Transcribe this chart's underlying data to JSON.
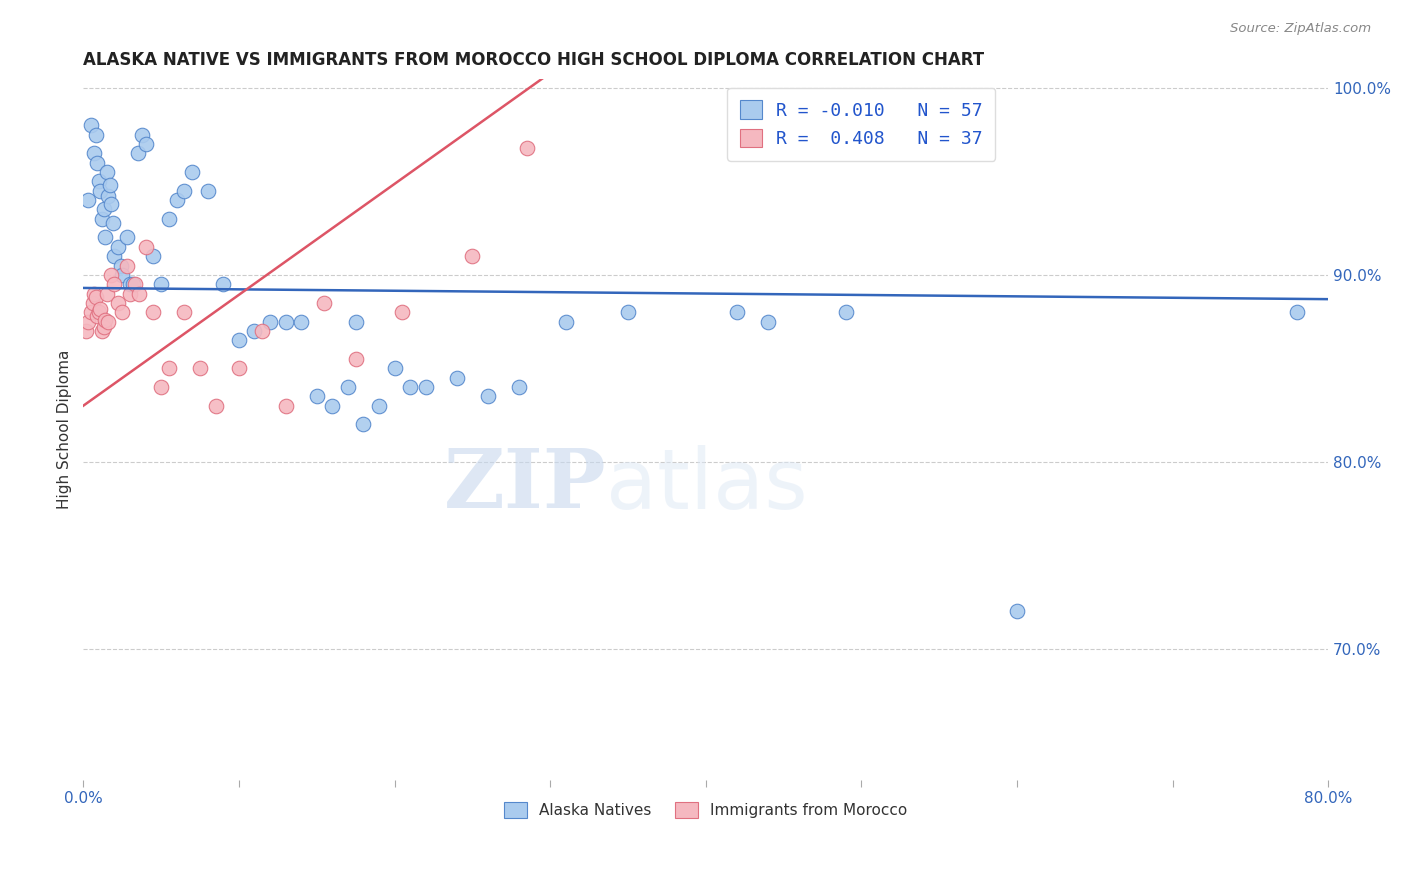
{
  "title": "ALASKA NATIVE VS IMMIGRANTS FROM MOROCCO HIGH SCHOOL DIPLOMA CORRELATION CHART",
  "source": "Source: ZipAtlas.com",
  "ylabel": "High School Diploma",
  "watermark_zip": "ZIP",
  "watermark_atlas": "atlas",
  "xlim": [
    0.0,
    0.8
  ],
  "ylim": [
    0.63,
    1.005
  ],
  "blue_R": -0.01,
  "blue_N": 57,
  "pink_R": 0.408,
  "pink_N": 37,
  "legend_label_blue": "Alaska Natives",
  "legend_label_pink": "Immigrants from Morocco",
  "blue_color": "#aacbee",
  "pink_color": "#f5b8c0",
  "blue_edge_color": "#5588cc",
  "pink_edge_color": "#e07080",
  "blue_line_color": "#3366bb",
  "pink_line_color": "#dd5566",
  "blue_line": {
    "x0": 0.0,
    "y0": 0.893,
    "x1": 0.8,
    "y1": 0.887
  },
  "pink_line": {
    "x0": 0.0,
    "y0": 0.83,
    "x1": 0.295,
    "y1": 1.005
  },
  "blue_scatter_x": [
    0.003,
    0.005,
    0.007,
    0.008,
    0.009,
    0.01,
    0.011,
    0.012,
    0.013,
    0.014,
    0.015,
    0.016,
    0.017,
    0.018,
    0.019,
    0.02,
    0.022,
    0.024,
    0.025,
    0.028,
    0.03,
    0.032,
    0.035,
    0.038,
    0.04,
    0.045,
    0.05,
    0.055,
    0.06,
    0.065,
    0.07,
    0.08,
    0.09,
    0.1,
    0.11,
    0.12,
    0.13,
    0.14,
    0.15,
    0.16,
    0.17,
    0.175,
    0.18,
    0.19,
    0.2,
    0.21,
    0.22,
    0.24,
    0.26,
    0.28,
    0.31,
    0.35,
    0.42,
    0.44,
    0.49,
    0.6,
    0.78
  ],
  "blue_scatter_y": [
    0.94,
    0.98,
    0.965,
    0.975,
    0.96,
    0.95,
    0.945,
    0.93,
    0.935,
    0.92,
    0.955,
    0.942,
    0.948,
    0.938,
    0.928,
    0.91,
    0.915,
    0.905,
    0.9,
    0.92,
    0.895,
    0.895,
    0.965,
    0.975,
    0.97,
    0.91,
    0.895,
    0.93,
    0.94,
    0.945,
    0.955,
    0.945,
    0.895,
    0.865,
    0.87,
    0.875,
    0.875,
    0.875,
    0.835,
    0.83,
    0.84,
    0.875,
    0.82,
    0.83,
    0.85,
    0.84,
    0.84,
    0.845,
    0.835,
    0.84,
    0.875,
    0.88,
    0.88,
    0.875,
    0.88,
    0.72,
    0.88
  ],
  "pink_scatter_x": [
    0.002,
    0.003,
    0.005,
    0.006,
    0.007,
    0.008,
    0.009,
    0.01,
    0.011,
    0.012,
    0.013,
    0.014,
    0.015,
    0.016,
    0.018,
    0.02,
    0.022,
    0.025,
    0.028,
    0.03,
    0.033,
    0.036,
    0.04,
    0.045,
    0.05,
    0.055,
    0.065,
    0.075,
    0.085,
    0.1,
    0.115,
    0.13,
    0.155,
    0.175,
    0.205,
    0.25,
    0.285
  ],
  "pink_scatter_y": [
    0.87,
    0.875,
    0.88,
    0.885,
    0.89,
    0.888,
    0.878,
    0.88,
    0.882,
    0.87,
    0.872,
    0.876,
    0.89,
    0.875,
    0.9,
    0.895,
    0.885,
    0.88,
    0.905,
    0.89,
    0.895,
    0.89,
    0.915,
    0.88,
    0.84,
    0.85,
    0.88,
    0.85,
    0.83,
    0.85,
    0.87,
    0.83,
    0.885,
    0.855,
    0.88,
    0.91,
    0.968
  ]
}
